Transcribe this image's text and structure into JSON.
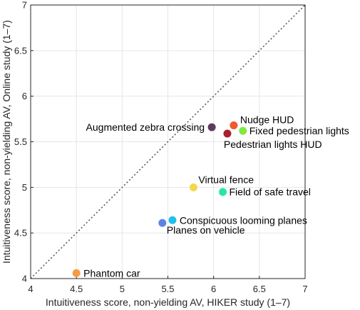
{
  "chart_data": {
    "type": "scatter",
    "xlabel": "Intuitiveness score, non-yielding AV, HIKER study (1–7)",
    "ylabel": "Intuitiveness score, non-yielding AV, Online study (1–7)",
    "xlim": [
      4,
      7
    ],
    "ylim": [
      4,
      7
    ],
    "xticks": [
      "4",
      "4.5",
      "5",
      "5.5",
      "6",
      "6.5",
      "7"
    ],
    "yticks": [
      "4",
      "4.5",
      "5",
      "5.5",
      "6",
      "6.5",
      "7"
    ],
    "grid": true,
    "reference_line": "diagonal y = x (dotted)",
    "points": [
      {
        "label": "Augmented zebra crossing",
        "x": 5.98,
        "y": 5.66,
        "color": "#5e3a5e"
      },
      {
        "label": "Nudge HUD",
        "x": 6.22,
        "y": 5.68,
        "color": "#f05a30"
      },
      {
        "label": "Fixed pedestrian lights",
        "x": 6.32,
        "y": 5.62,
        "color": "#80ea40"
      },
      {
        "label": "Pedestrian lights HUD",
        "x": 6.15,
        "y": 5.59,
        "color": "#a81f2e"
      },
      {
        "label": "Virtual fence",
        "x": 5.78,
        "y": 5.0,
        "color": "#f5d74e"
      },
      {
        "label": "Field of safe travel",
        "x": 6.1,
        "y": 4.95,
        "color": "#27e8a2"
      },
      {
        "label": "Conspicuous looming planes",
        "x": 5.55,
        "y": 4.64,
        "color": "#21c0ec"
      },
      {
        "label": "Planes on vehicle",
        "x": 5.44,
        "y": 4.61,
        "color": "#5f82e6"
      },
      {
        "label": "Phantom car",
        "x": 4.5,
        "y": 4.06,
        "color": "#f59a42"
      }
    ]
  }
}
